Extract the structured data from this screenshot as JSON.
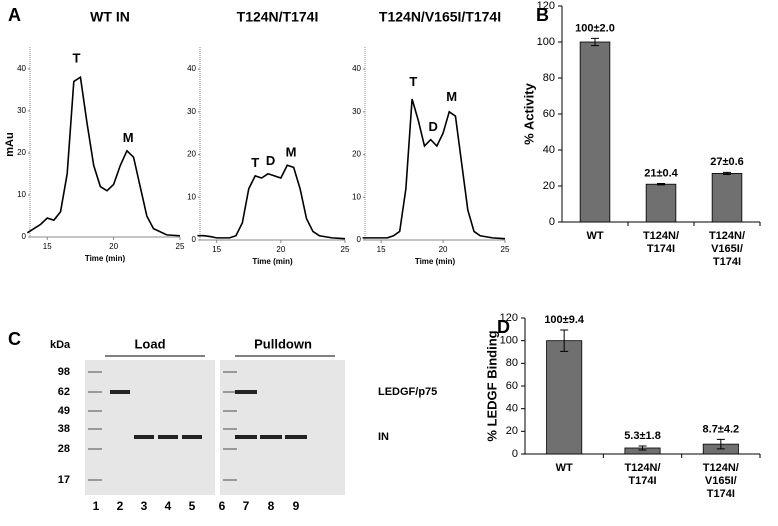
{
  "panel_labels": [
    "A",
    "B",
    "C",
    "D"
  ],
  "chart_data": [
    {
      "type": "line",
      "title": "WT IN",
      "y_label": "mAu",
      "x_label": "Time (min)",
      "x": [
        13.5,
        14,
        14.5,
        15,
        15.5,
        16,
        16.5,
        17,
        17.5,
        18,
        18.5,
        19,
        19.5,
        20,
        20.5,
        21,
        21.5,
        22,
        22.5,
        23,
        24,
        25
      ],
      "series": [
        {
          "color": "#000000",
          "values": [
            1,
            2,
            3,
            4.5,
            4,
            6,
            15,
            37,
            38,
            27,
            17,
            12,
            11,
            12.5,
            17,
            20.5,
            19,
            12,
            5,
            2,
            0.5,
            0.3
          ]
        }
      ],
      "xlim": [
        13.7,
        25
      ],
      "xticks": [
        15,
        20,
        25
      ],
      "ylim": [
        0,
        44
      ],
      "yticks": [
        0,
        10,
        20,
        30,
        40
      ],
      "annotations": [
        {
          "text": "T",
          "x": 17.2,
          "y": 40
        },
        {
          "text": "M",
          "x": 21.1,
          "y": 21
        }
      ]
    },
    {
      "type": "line",
      "title": "T124N/T174I",
      "x_label": "Time (min)",
      "x": [
        13.5,
        14,
        14.5,
        15,
        15.5,
        16,
        16.5,
        17,
        17.5,
        18,
        18.5,
        19,
        19.5,
        20,
        20.5,
        21,
        21.5,
        22,
        22.5,
        23,
        24,
        25
      ],
      "series": [
        {
          "color": "#000000",
          "values": [
            1,
            1,
            0.8,
            0.5,
            0.5,
            0.5,
            1,
            4,
            12,
            15,
            14.5,
            15.5,
            15,
            14.5,
            17.5,
            17,
            12,
            5,
            2,
            1,
            0.5,
            0.3
          ]
        }
      ],
      "xlim": [
        13.7,
        25
      ],
      "xticks": [
        15,
        20,
        25
      ],
      "ylim": [
        0,
        44
      ],
      "yticks": [
        0,
        10,
        20,
        30,
        40
      ],
      "annotations": [
        {
          "text": "T",
          "x": 18,
          "y": 15.5
        },
        {
          "text": "D",
          "x": 19.2,
          "y": 16
        },
        {
          "text": "M",
          "x": 20.8,
          "y": 18
        }
      ]
    },
    {
      "type": "line",
      "title": "T124N/V165I/T174I",
      "x_label": "Time (min)",
      "x": [
        13.5,
        14,
        14.5,
        15,
        15.5,
        16,
        16.5,
        17,
        17.5,
        18,
        18.5,
        19,
        19.5,
        20,
        20.5,
        21,
        21.5,
        22,
        22.5,
        23,
        24,
        25
      ],
      "series": [
        {
          "color": "#000000",
          "values": [
            0.5,
            0.5,
            0.5,
            0.5,
            0.5,
            1,
            2,
            12,
            33,
            28,
            22,
            23.5,
            22,
            25,
            30,
            29,
            18,
            7,
            2,
            1,
            0.5,
            0.3
          ]
        }
      ],
      "xlim": [
        13.7,
        25
      ],
      "xticks": [
        15,
        20,
        25
      ],
      "ylim": [
        0,
        44
      ],
      "yticks": [
        0,
        10,
        20,
        30,
        40
      ],
      "annotations": [
        {
          "text": "T",
          "x": 17.6,
          "y": 34.5
        },
        {
          "text": "D",
          "x": 19.2,
          "y": 24
        },
        {
          "text": "M",
          "x": 20.7,
          "y": 31
        }
      ]
    },
    {
      "type": "bar",
      "y_label": "% Activity",
      "categories": [
        [
          "WT"
        ],
        [
          "T124N/",
          "T174I"
        ],
        [
          "T124N/",
          "V165I/",
          "T174I"
        ]
      ],
      "values": [
        100,
        21,
        27
      ],
      "errors": [
        2.0,
        0.4,
        0.6
      ],
      "value_labels": [
        "100±2.0",
        "21±0.4",
        "27±0.6"
      ],
      "color": "#707070",
      "ylim": [
        0,
        120
      ],
      "yticks": [
        0,
        20,
        40,
        60,
        80,
        100,
        120
      ]
    },
    {
      "type": "bar",
      "y_label": "% LEDGF Binding",
      "categories": [
        [
          "WT"
        ],
        [
          "T124N/",
          "T174I"
        ],
        [
          "T124N/",
          "V165I/",
          "T174I"
        ]
      ],
      "values": [
        100,
        5.3,
        8.7
      ],
      "errors": [
        9.4,
        1.8,
        4.2
      ],
      "value_labels": [
        "100±9.4",
        "5.3±1.8",
        "8.7±4.2"
      ],
      "color": "#707070",
      "ylim": [
        0,
        120
      ],
      "yticks": [
        0,
        20,
        40,
        60,
        80,
        100,
        120
      ]
    }
  ],
  "gel": {
    "unit": "kDa",
    "markers": [
      "98",
      "62",
      "49",
      "38",
      "28",
      "17"
    ],
    "groups": [
      "Load",
      "Pulldown"
    ],
    "lanes": [
      "1",
      "2",
      "3",
      "4",
      "5",
      "6",
      "7",
      "8",
      "9"
    ],
    "bands": [
      "LEDGF/p75",
      "IN"
    ]
  }
}
